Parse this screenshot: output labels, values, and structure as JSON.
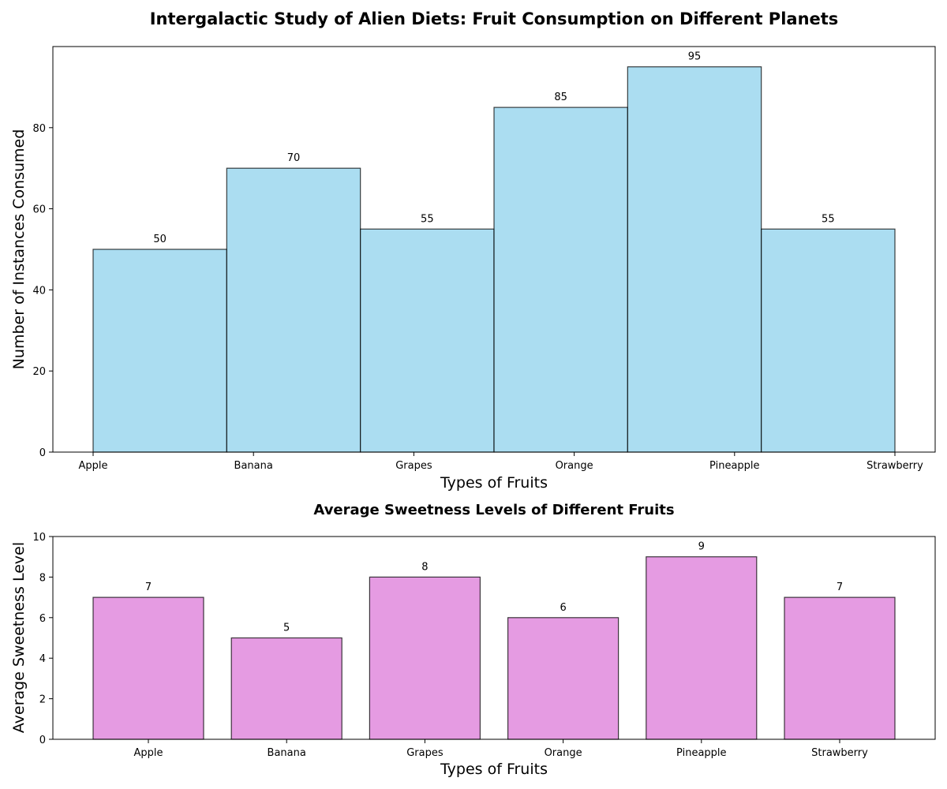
{
  "chart_data": [
    {
      "type": "bar",
      "title": "Intergalactic Study of Alien Diets: Fruit Consumption on Different Planets",
      "xlabel": "Types of Fruits",
      "ylabel": "Number of Instances Consumed",
      "categories": [
        "Apple",
        "Banana",
        "Grapes",
        "Orange",
        "Pineapple",
        "Strawberry"
      ],
      "values": [
        50,
        70,
        55,
        85,
        95,
        55
      ],
      "ylim": [
        0,
        100
      ],
      "yticks": [
        0,
        20,
        40,
        60,
        80
      ],
      "bar_color": "#87ceeb",
      "edge_color": "#000000",
      "grid": false,
      "legend": "none"
    },
    {
      "type": "bar",
      "title": "Average Sweetness Levels of Different Fruits",
      "xlabel": "Types of Fruits",
      "ylabel": "Average Sweetness Level",
      "categories": [
        "Apple",
        "Banana",
        "Grapes",
        "Orange",
        "Pineapple",
        "Strawberry"
      ],
      "values": [
        7,
        5,
        8,
        6,
        9,
        7
      ],
      "ylim": [
        0,
        10
      ],
      "yticks": [
        0,
        2,
        4,
        6,
        8,
        10
      ],
      "bar_color": "#da70d6",
      "edge_color": "#000000",
      "grid": false,
      "legend": "none"
    }
  ]
}
